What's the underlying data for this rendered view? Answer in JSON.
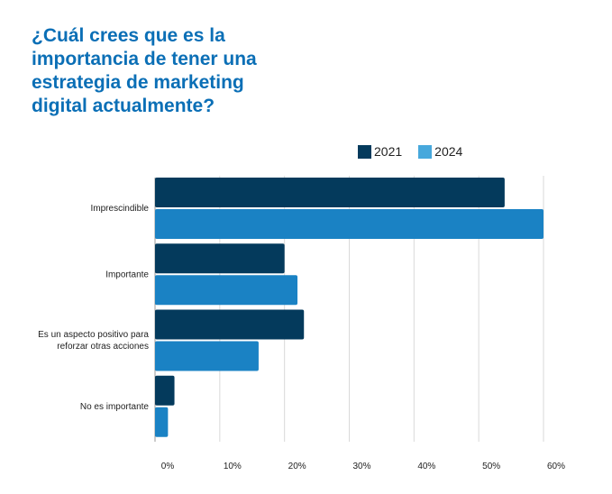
{
  "chart_data": {
    "type": "bar",
    "orientation": "horizontal",
    "title": "¿Cuál crees que es la importancia de tener una estrategia de marketing digital actualmente?",
    "categories": [
      [
        "Imprescindible"
      ],
      [
        "Importante"
      ],
      [
        "Es un aspecto positivo para",
        "reforzar otras acciones"
      ],
      [
        "No es importante"
      ]
    ],
    "series": [
      {
        "name": "2021",
        "color": "#043a5c",
        "values": [
          54,
          20,
          23,
          3
        ]
      },
      {
        "name": "2024",
        "color": "#1a82c4",
        "legend_color": "#47a8dc",
        "values": [
          60,
          22,
          16,
          2
        ]
      }
    ],
    "xlim": [
      0,
      60
    ],
    "xticks": [
      "0%",
      "10%",
      "20%",
      "30%",
      "40%",
      "50%",
      "60%"
    ],
    "grid": true,
    "legend": "top-right"
  }
}
